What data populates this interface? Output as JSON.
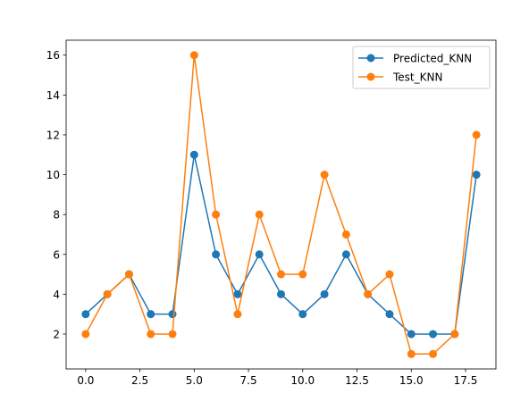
{
  "chart_data": {
    "type": "line",
    "title": "",
    "xlabel": "",
    "ylabel": "",
    "xlim": [
      -0.9,
      18.9
    ],
    "ylim": [
      0.25,
      16.75
    ],
    "x_ticks": [
      0.0,
      2.5,
      5.0,
      7.5,
      10.0,
      12.5,
      15.0,
      17.5
    ],
    "x_tick_labels": [
      "0.0",
      "2.5",
      "5.0",
      "7.5",
      "10.0",
      "12.5",
      "15.0",
      "17.5"
    ],
    "y_ticks": [
      2,
      4,
      6,
      8,
      10,
      12,
      14,
      16
    ],
    "y_tick_labels": [
      "2",
      "4",
      "6",
      "8",
      "10",
      "12",
      "14",
      "16"
    ],
    "grid": false,
    "legend_position": "top-right",
    "x": [
      0,
      1,
      2,
      3,
      4,
      5,
      6,
      7,
      8,
      9,
      10,
      11,
      12,
      13,
      14,
      15,
      16,
      17,
      18
    ],
    "series": [
      {
        "name": "Predicted_KNN",
        "color": "#1f77b4",
        "values": [
          3,
          4,
          5,
          3,
          3,
          11,
          6,
          4,
          6,
          4,
          3,
          4,
          6,
          4,
          3,
          2,
          2,
          2,
          10
        ]
      },
      {
        "name": "Test_KNN",
        "color": "#ff7f0e",
        "values": [
          2,
          4,
          5,
          2,
          2,
          16,
          8,
          3,
          8,
          5,
          5,
          10,
          7,
          4,
          5,
          1,
          1,
          2,
          12
        ]
      }
    ]
  }
}
